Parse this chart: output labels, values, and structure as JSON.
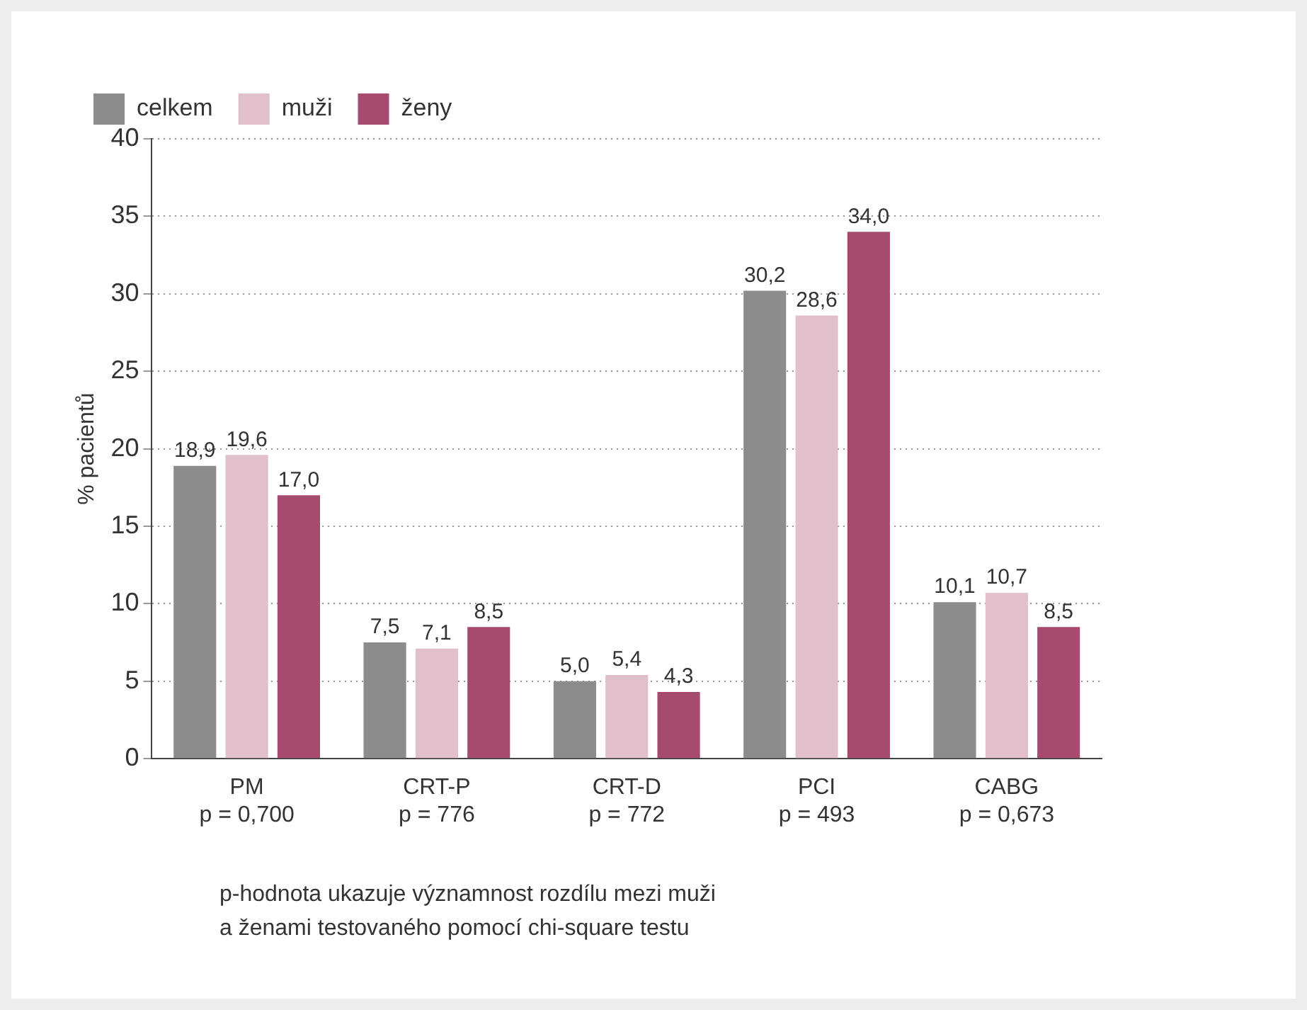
{
  "chart_data": {
    "type": "bar",
    "ylabel": "% pacientů",
    "categories": [
      "PM\np = 0,700",
      "CRT-P\np = 776",
      "CRT-D\np = 772",
      "PCI\np = 493",
      "CABG\np = 0,673"
    ],
    "series": [
      {
        "name": "celkem",
        "color": "#8c8c8c",
        "values": [
          18.9,
          7.5,
          5.0,
          30.2,
          10.1
        ],
        "value_labels": [
          "18,9",
          "7,5",
          "5,0",
          "30,2",
          "10,1"
        ]
      },
      {
        "name": "muži",
        "color": "#e2bfcd",
        "values": [
          19.6,
          7.1,
          5.4,
          28.6,
          10.7
        ],
        "value_labels": [
          "19,6",
          "7,1",
          "5,4",
          "28,6",
          "10,7"
        ]
      },
      {
        "name": "ženy",
        "color": "#a64a70",
        "values": [
          17.0,
          8.5,
          4.3,
          34.0,
          8.5
        ],
        "value_labels": [
          "17,0",
          "8,5",
          "4,3",
          "34,0",
          "8,5"
        ]
      }
    ],
    "ylim": [
      0,
      40
    ],
    "yticks": [
      0,
      5,
      10,
      15,
      20,
      25,
      30,
      35,
      40
    ],
    "grid": "y",
    "legend": "top left",
    "annotations": [
      "p-hodnota ukazuje významnost rozdílu mezi muži a ženami testovaného pomocí chi-square testu"
    ]
  }
}
